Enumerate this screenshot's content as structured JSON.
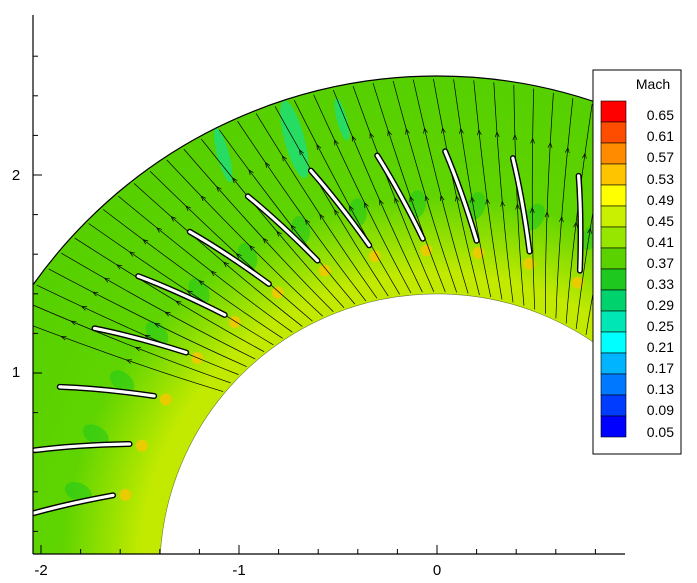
{
  "chart_data": {
    "type": "heatmap",
    "title": "",
    "xlabel": "",
    "ylabel": "",
    "xlim": [
      -2.05,
      0.95
    ],
    "ylim": [
      0.09,
      2.9
    ],
    "x_ticks": [
      "-2",
      "-1",
      "0"
    ],
    "y_ticks": [
      "1",
      "2"
    ],
    "x_tick_values": [
      -2,
      -1,
      0
    ],
    "y_tick_values": [
      1,
      2
    ],
    "domain": {
      "shape": "annular-sector",
      "center": [
        0,
        0
      ],
      "inner_radius": 1.4,
      "outer_radius": 2.5
    },
    "blades": {
      "count": 14,
      "note": "vane cascade inside the annulus"
    },
    "streamlines": {
      "shown": true,
      "direction": "radially-outward"
    },
    "colorbar": {
      "title": "Mach",
      "levels": [
        "0.65",
        "0.61",
        "0.57",
        "0.53",
        "0.49",
        "0.45",
        "0.41",
        "0.37",
        "0.33",
        "0.29",
        "0.25",
        "0.21",
        "0.17",
        "0.13",
        "0.09",
        "0.05"
      ],
      "colors": [
        "#ff0000",
        "#ff4d00",
        "#ff8c00",
        "#ffc400",
        "#ffff00",
        "#c8f000",
        "#96e600",
        "#5ad200",
        "#1ec81e",
        "#00d26e",
        "#00e6b4",
        "#00ffff",
        "#00b4ff",
        "#0078ff",
        "#003cff",
        "#0000ff"
      ],
      "placement": "right"
    },
    "field_colors": {
      "dominant": "#5ad200",
      "inner_band": "#b8e600",
      "high_spot": "#ffc400",
      "low_wake": "#1ec81e",
      "cyan_wake": "#00e6b4"
    },
    "grid": false
  }
}
